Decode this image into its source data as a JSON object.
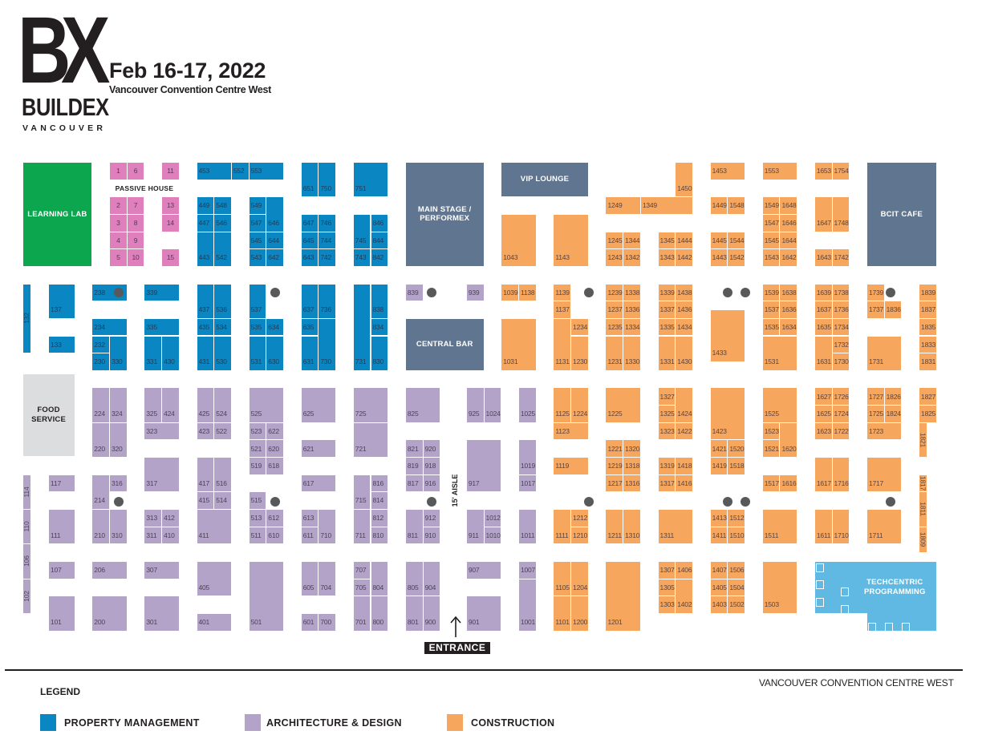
{
  "header": {
    "logo": {
      "mark": "BX",
      "name": "BUILDEX",
      "city": "VANCOUVER"
    },
    "date": "Feb 16-17, 2022",
    "venue": "Vancouver Convention Centre West"
  },
  "colors": {
    "property_management": "#0a86c2",
    "architecture_design": "#b3a3c8",
    "construction": "#f6a65d",
    "passive_house": "#df7fbb",
    "learning_lab": "#0ba64e",
    "feature_area": "#60758f",
    "food_service": "#dcdddf",
    "techcentric": "#5fb9e2"
  },
  "areas": {
    "learning_lab": "LEARNING LAB",
    "main_stage": "MAIN STAGE / PERFORMEX",
    "vip_lounge": "VIP LOUNGE",
    "central_bar": "CENTRAL BAR",
    "bcit_cafe": "BCIT CAFE",
    "food_service": "FOOD SERVICE",
    "techcentric": "TECHCENTRIC PROGRAMMING"
  },
  "map_labels": {
    "passive_house": "PASSIVE HOUSE",
    "aisle": "15' AISLE",
    "entrance": "ENTRANCE"
  },
  "booths": {
    "passive_house": [
      "1",
      "6",
      "11",
      "2",
      "7",
      "13",
      "3",
      "8",
      "14",
      "4",
      "9",
      "5",
      "10",
      "15"
    ],
    "property_management": [
      "453",
      "552",
      "553",
      "651",
      "750",
      "751",
      "449",
      "548",
      "447",
      "546",
      "443",
      "542",
      "549",
      "646",
      "547",
      "545",
      "644",
      "543",
      "642",
      "647",
      "746",
      "645",
      "744",
      "643",
      "742",
      "745",
      "743",
      "846",
      "844",
      "842",
      "132",
      "137",
      "133",
      "238",
      "339",
      "234",
      "232",
      "230",
      "330",
      "335",
      "331",
      "430",
      "437",
      "536",
      "435",
      "534",
      "431",
      "530",
      "537",
      "535",
      "634",
      "531",
      "630",
      "637",
      "736",
      "635",
      "631",
      "730",
      "731",
      "838",
      "834",
      "830"
    ],
    "architecture_design": [
      "224",
      "324",
      "220",
      "320",
      "325",
      "424",
      "323",
      "425",
      "524",
      "423",
      "522",
      "525",
      "523",
      "622",
      "521",
      "620",
      "519",
      "618",
      "625",
      "621",
      "725",
      "721",
      "114",
      "110",
      "106",
      "102",
      "117",
      "111",
      "107",
      "101",
      "214",
      "316",
      "210",
      "310",
      "206",
      "200",
      "317",
      "313",
      "412",
      "311",
      "410",
      "307",
      "301",
      "417",
      "516",
      "415",
      "514",
      "411",
      "405",
      "401",
      "515",
      "513",
      "612",
      "511",
      "610",
      "501",
      "617",
      "613",
      "611",
      "710",
      "605",
      "704",
      "601",
      "700",
      "715",
      "816",
      "814",
      "711",
      "812",
      "810",
      "707",
      "705",
      "804",
      "701",
      "800",
      "839",
      "939",
      "825",
      "925",
      "1024",
      "1025",
      "821",
      "920",
      "819",
      "918",
      "817",
      "916",
      "917",
      "1019",
      "1017",
      "811",
      "912",
      "910",
      "911",
      "1012",
      "1010",
      "1011",
      "805",
      "904",
      "801",
      "900",
      "907",
      "901",
      "1007",
      "1001"
    ],
    "construction": [
      "1450",
      "1249",
      "1349",
      "1043",
      "1143",
      "1245",
      "1344",
      "1243",
      "1342",
      "1345",
      "1444",
      "1343",
      "1442",
      "1453",
      "1553",
      "1653",
      "1754",
      "1449",
      "1548",
      "1445",
      "1544",
      "1443",
      "1542",
      "1549",
      "1648",
      "1547",
      "1646",
      "1545",
      "1644",
      "1543",
      "1642",
      "1647",
      "1748",
      "1643",
      "1742",
      "1039",
      "1138",
      "1031",
      "1139",
      "1137",
      "1131",
      "1234",
      "1230",
      "1239",
      "1338",
      "1237",
      "1336",
      "1235",
      "1334",
      "1231",
      "1330",
      "1339",
      "1438",
      "1337",
      "1436",
      "1335",
      "1434",
      "1331",
      "1430",
      "1433",
      "1539",
      "1638",
      "1537",
      "1636",
      "1535",
      "1634",
      "1531",
      "1639",
      "1738",
      "1637",
      "1736",
      "1635",
      "1734",
      "1631",
      "1732",
      "1730",
      "1739",
      "1737",
      "1836",
      "1731",
      "1839",
      "1837",
      "1835",
      "1833",
      "1831",
      "1125",
      "1224",
      "1123",
      "1225",
      "1327",
      "1424",
      "1325",
      "1323",
      "1422",
      "1119",
      "1221",
      "1320",
      "1219",
      "1318",
      "1217",
      "1316",
      "1319",
      "1418",
      "1317",
      "1416",
      "1111",
      "1212",
      "1210",
      "1211",
      "1310",
      "1311",
      "1105",
      "1204",
      "1101",
      "1200",
      "1201",
      "1307",
      "1406",
      "1305",
      "1303",
      "1402",
      "1423",
      "1421",
      "1520",
      "1419",
      "1518",
      "1413",
      "1512",
      "1411",
      "1510",
      "1407",
      "1506",
      "1405",
      "1504",
      "1403",
      "1502",
      "1525",
      "1523",
      "1620",
      "1521",
      "1517",
      "1616",
      "1511",
      "1503",
      "1627",
      "1726",
      "1625",
      "1724",
      "1623",
      "1722",
      "1617",
      "1716",
      "1611",
      "1710",
      "1727",
      "1826",
      "1725",
      "1824",
      "1723",
      "1717",
      "1711",
      "1827",
      "1825",
      "1821",
      "1817",
      "1811",
      "1809"
    ]
  },
  "legend": {
    "title": "LEGEND",
    "items": [
      {
        "label": "PROPERTY MANAGEMENT",
        "color": "#0a86c2"
      },
      {
        "label": "ARCHITECTURE & DESIGN",
        "color": "#b3a3c8"
      },
      {
        "label": "CONSTRUCTION",
        "color": "#f6a65d"
      }
    ]
  },
  "footer": {
    "venue": "VANCOUVER CONVENTION CENTRE WEST"
  }
}
